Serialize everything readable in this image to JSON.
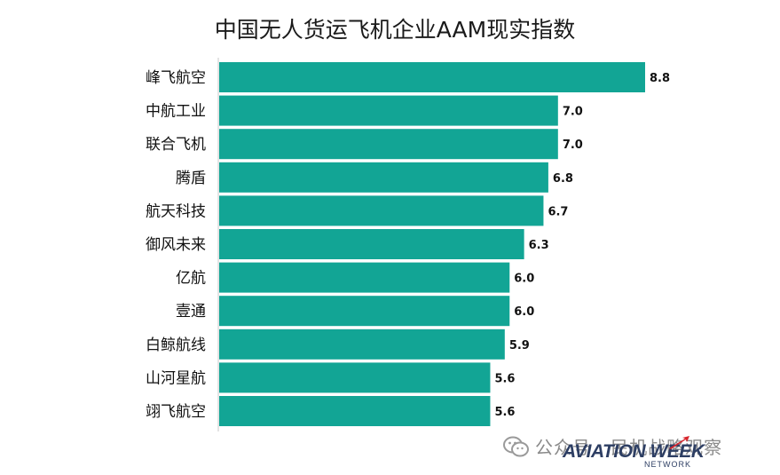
{
  "chart_data": {
    "type": "bar",
    "orientation": "horizontal",
    "title": "中国无人货运飞机企业AAM现实指数",
    "xlabel": "",
    "ylabel": "",
    "categories": [
      "峰飞航空",
      "中航工业",
      "联合飞机",
      "腾盾",
      "航天科技",
      "御风未来",
      "亿航",
      "壹通",
      "白鲸航线",
      "山河星航",
      "翊飞航空"
    ],
    "values": [
      8.8,
      7.0,
      7.0,
      6.8,
      6.7,
      6.3,
      6.0,
      6.0,
      5.9,
      5.6,
      5.6
    ],
    "value_labels": [
      "8.8",
      "7.0",
      "7.0",
      "6.8",
      "6.7",
      "6.3",
      "6.0",
      "6.0",
      "5.9",
      "5.6",
      "5.6"
    ],
    "xlim": [
      0,
      8.8
    ],
    "bar_color": "#12a595",
    "grid": false,
    "legend": "none"
  },
  "watermark": {
    "icon": "wechat-icon",
    "text": "公众号 · 民机战略观察"
  },
  "logo": {
    "main": "AVIATION WEEK",
    "sub": "NETWORK",
    "accent_color": "#d7262d"
  }
}
